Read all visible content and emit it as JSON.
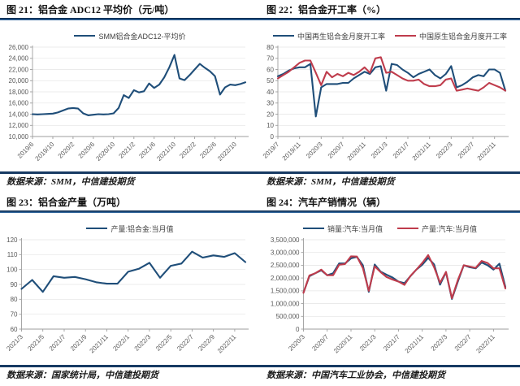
{
  "colors": {
    "rule_navy_dark": "#0f2e52",
    "rule_navy_light": "#2e6399",
    "line_blue": "#1f4e79",
    "line_red": "#bf3c4c",
    "axis": "#9e9e9e",
    "grid": "#e4e4e4",
    "tick_label": "#595959"
  },
  "charts": [
    {
      "title": "图 21：铝合金 ADC12 平均价（元/吨）",
      "source": "数据来源：SMM，中信建投期货",
      "chart_data": {
        "type": "line",
        "x_unit": "month",
        "x_range": [
          "2019/6",
          "2022/12"
        ],
        "x_tick_labels": [
          "2019/6",
          "2019/10",
          "2020/2",
          "2020/6",
          "2020/10",
          "2021/2",
          "2021/6",
          "2021/10",
          "2022/2",
          "2022/6",
          "2022/10"
        ],
        "x_tick_indices": [
          0,
          4,
          8,
          12,
          16,
          20,
          24,
          28,
          32,
          36,
          40
        ],
        "ylim": [
          10000,
          26000
        ],
        "ytick_step": 2000,
        "y_grouping": true,
        "grid": true,
        "legend_position": "top",
        "series": [
          {
            "name": "SMM铝合金ADC12-平均价",
            "color": "#1f4e79",
            "values": [
              14000,
              13950,
              14000,
              14050,
              14100,
              14300,
              14650,
              15000,
              15100,
              15000,
              14150,
              13800,
              13900,
              14000,
              13950,
              14000,
              14150,
              15100,
              17400,
              16900,
              18300,
              17900,
              18100,
              19500,
              18700,
              19300,
              20600,
              22400,
              24600,
              20400,
              20100,
              21000,
              22000,
              23000,
              22300,
              21700,
              20800,
              17500,
              18800,
              19300,
              19200,
              19400,
              19700
            ]
          }
        ]
      }
    },
    {
      "title": "图 22：铝合金开工率（%）",
      "source": "数据来源：SMM，中信建投期货",
      "chart_data": {
        "type": "line",
        "x_unit": "month",
        "x_range": [
          "2019/7",
          "2023/1"
        ],
        "x_tick_labels": [
          "2019/7",
          "2019/11",
          "2020/3",
          "2020/7",
          "2020/11",
          "2021/3",
          "2021/7",
          "2021/11",
          "2022/3",
          "2022/7",
          "2022/11"
        ],
        "x_tick_indices": [
          0,
          4,
          8,
          12,
          16,
          20,
          24,
          28,
          32,
          36,
          40
        ],
        "ylim": [
          0,
          80
        ],
        "ytick_step": 10,
        "y_grouping": false,
        "grid": true,
        "legend_position": "top",
        "series": [
          {
            "name": "中国再生铝合金月度开工率",
            "color": "#1f4e79",
            "values": [
              54,
              56,
              59,
              61,
              62,
              62,
              65,
              18,
              44,
              47,
              47,
              47,
              48,
              48,
              52,
              55,
              58,
              56,
              62,
              63,
              41,
              65,
              64,
              60,
              57,
              53,
              56,
              58,
              60,
              55,
              52,
              56,
              63,
              44,
              46,
              49,
              53,
              55,
              54,
              60,
              60,
              57,
              41
            ]
          },
          {
            "name": "中国原生铝合金月度开工率",
            "color": "#bf3c4c",
            "values": [
              52,
              55,
              58,
              62,
              66,
              68,
              68,
              57,
              46,
              58,
              53,
              56,
              54,
              57,
              55,
              58,
              62,
              57,
              70,
              71,
              57,
              58,
              55,
              52,
              50,
              50,
              51,
              47,
              45,
              45,
              46,
              51,
              52,
              41,
              42,
              43,
              42,
              41,
              44,
              48,
              46,
              44,
              41
            ]
          }
        ]
      }
    },
    {
      "title": "图 23：铝合金产量（万吨）",
      "source": "数据来源：国家统计局，中信建投期货",
      "chart_data": {
        "type": "line",
        "x_unit": "month",
        "x_range": [
          "2021/3",
          "2022/12"
        ],
        "x_tick_labels": [
          "2021/3",
          "2021/5",
          "2021/7",
          "2021/9",
          "2021/11",
          "2022/1",
          "2022/3",
          "2022/5",
          "2022/7",
          "2022/9",
          "2022/11"
        ],
        "x_tick_indices": [
          0,
          2,
          4,
          6,
          8,
          10,
          12,
          14,
          16,
          18,
          20
        ],
        "ylim": [
          60,
          120
        ],
        "ytick_step": 10,
        "y_grouping": false,
        "grid": true,
        "legend_position": "top",
        "series": [
          {
            "name": "产量:铝合金:当月值",
            "color": "#1f4e79",
            "values": [
              87,
              93,
              85,
              95.5,
              94.5,
              95,
              93.5,
              91.5,
              90.5,
              90.5,
              98.5,
              100.5,
              104.5,
              94.5,
              102.5,
              104,
              112,
              108,
              109.5,
              108.5,
              111,
              105
            ]
          }
        ]
      }
    },
    {
      "title": "图 24：汽车产销情况（辆）",
      "source": "数据来源：中国汽车工业协会，中信建投期货",
      "chart_data": {
        "type": "line",
        "x_unit": "month",
        "x_range": [
          "2020/3",
          "2023/1"
        ],
        "x_tick_labels": [
          "2020/3",
          "2020/7",
          "2020/11",
          "2021/3",
          "2021/7",
          "2021/11",
          "2022/3",
          "2022/7",
          "2022/11"
        ],
        "x_tick_indices": [
          0,
          4,
          8,
          12,
          16,
          20,
          24,
          28,
          32
        ],
        "ylim": [
          0,
          3500000
        ],
        "ytick_step": 500000,
        "y_grouping": true,
        "grid": true,
        "legend_position": "top",
        "series": [
          {
            "name": "销量:汽车:当月值",
            "color": "#1f4e79",
            "values": [
              1430000,
              2070000,
              2190000,
              2300000,
              2110000,
              2190000,
              2570000,
              2570000,
              2770000,
              2830000,
              2500000,
              1460000,
              2530000,
              2250000,
              2130000,
              2020000,
              1860000,
              1800000,
              2070000,
              2330000,
              2520000,
              2790000,
              2530000,
              1740000,
              2230000,
              1180000,
              1860000,
              2500000,
              2420000,
              2380000,
              2610000,
              2500000,
              2330000,
              2560000,
              1650000
            ]
          },
          {
            "name": "产量:汽车:当月值",
            "color": "#bf3c4c",
            "values": [
              1420000,
              2100000,
              2190000,
              2330000,
              2110000,
              2110000,
              2520000,
              2550000,
              2850000,
              2840000,
              2390000,
              1500000,
              2460000,
              2230000,
              2040000,
              1940000,
              1860000,
              1730000,
              2080000,
              2330000,
              2590000,
              2900000,
              2420000,
              1810000,
              2240000,
              1210000,
              1920000,
              2500000,
              2450000,
              2400000,
              2670000,
              2590000,
              2380000,
              2380000,
              1590000
            ]
          }
        ]
      }
    }
  ]
}
